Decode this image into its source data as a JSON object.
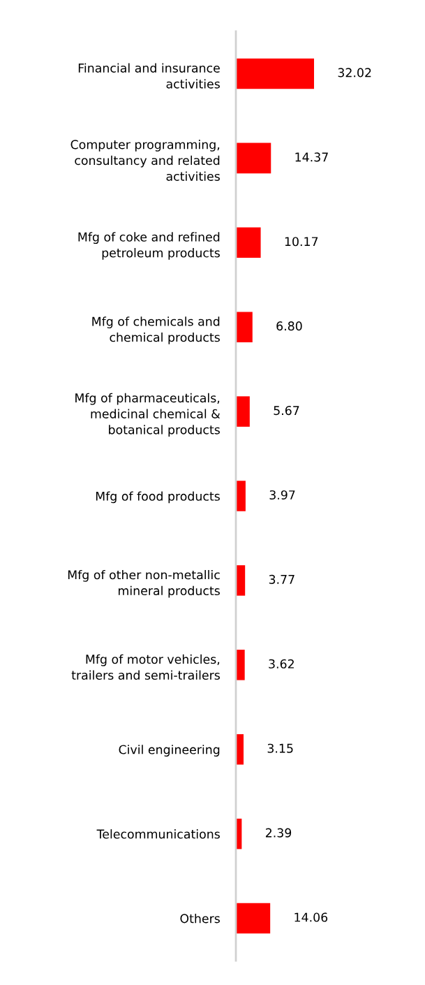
{
  "chart_data": {
    "type": "bar",
    "orientation": "horizontal",
    "categories": [
      "Financial and insurance\nactivities",
      "Computer programming,\nconsultancy and related\nactivities",
      "Mfg of coke and refined\npetroleum products",
      "Mfg of chemicals and\nchemical products",
      "Mfg of pharmaceuticals,\nmedicinal chemical &\nbotanical products",
      "Mfg of food products",
      "Mfg of other non-metallic\nmineral products",
      "Mfg of motor vehicles,\ntrailers and semi-trailers",
      "Civil engineering",
      "Telecommunications",
      "Others"
    ],
    "values": [
      32.02,
      14.37,
      10.17,
      6.8,
      5.67,
      3.97,
      3.77,
      3.62,
      3.15,
      2.39,
      14.06
    ],
    "value_labels": [
      "32.02",
      "14.37",
      "10.17",
      "6.80",
      "5.67",
      "3.97",
      "3.77",
      "3.62",
      "3.15",
      "2.39",
      "14.06"
    ],
    "color": "#ff0000",
    "grid": false,
    "legend": false
  }
}
